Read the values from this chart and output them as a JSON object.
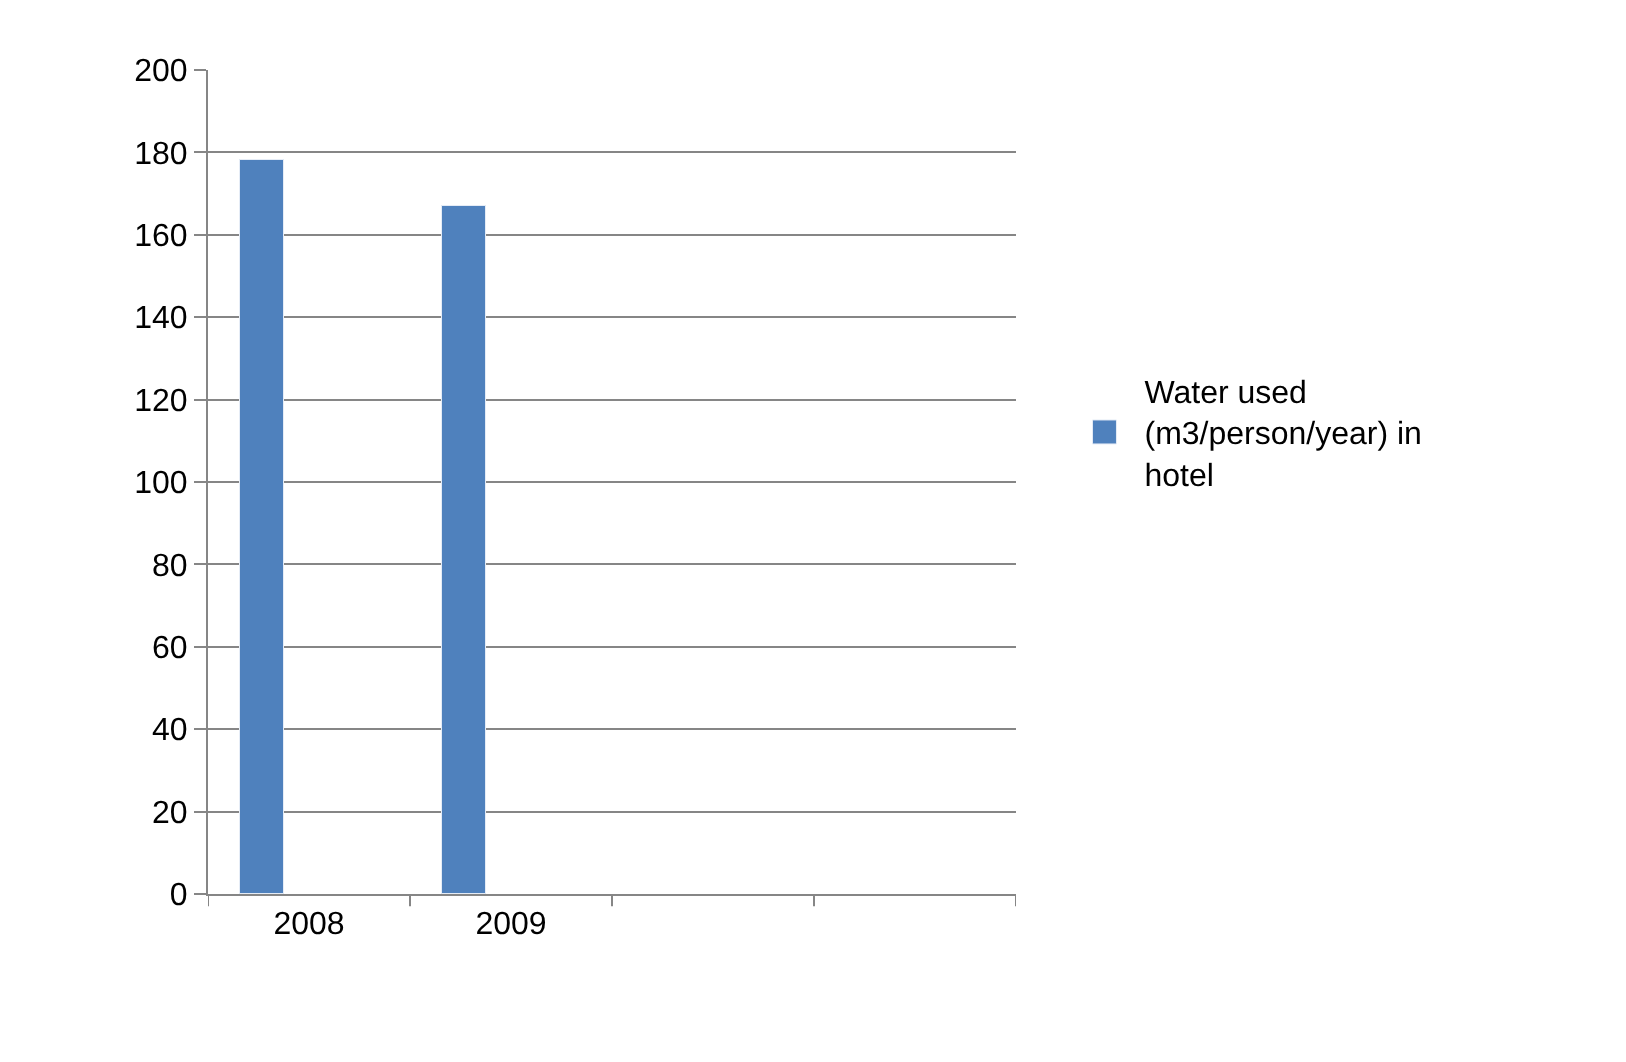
{
  "chart_data": {
    "type": "bar",
    "categories": [
      "2008",
      "2009",
      null,
      null
    ],
    "series": [
      {
        "name": "Water used (m3/person/year) in hotel",
        "color": "#4f81bd",
        "values": [
          178,
          167,
          null,
          null
        ]
      }
    ],
    "ylim": [
      0,
      200
    ],
    "yticks": [
      0,
      20,
      40,
      60,
      80,
      100,
      120,
      140,
      160,
      180,
      200
    ],
    "grid": "y",
    "legend": "right"
  }
}
